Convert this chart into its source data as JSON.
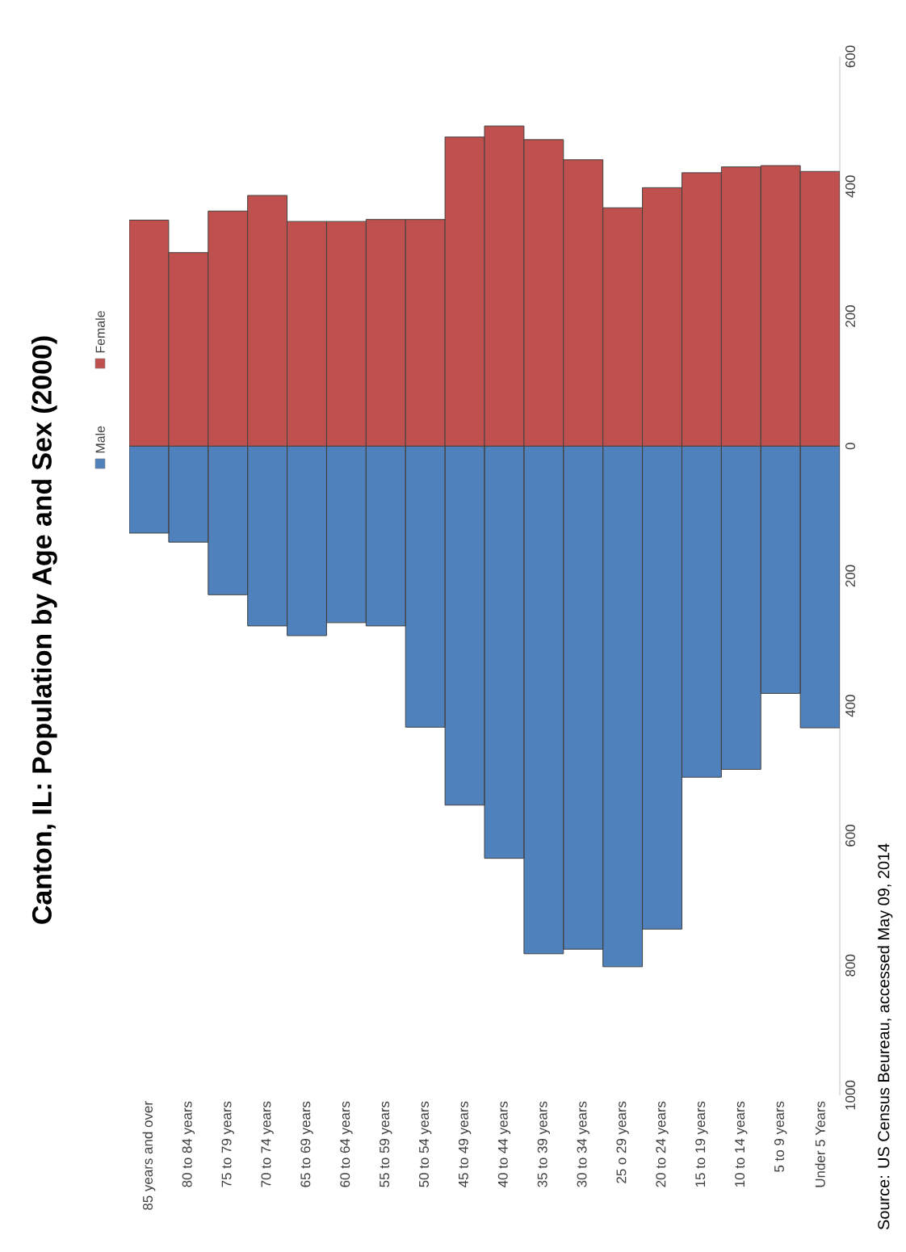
{
  "chart_data": {
    "type": "bar",
    "title": "Canton, IL: Population by Age and Sex (2000)",
    "categories": [
      "85 years and over",
      "80 to 84 years",
      "75 to 79 years",
      "70 to 74 years",
      "65 to 69 years",
      "60 to 64 years",
      "55 to 59 years",
      "50 to 54 years",
      "45 to 49 years",
      "40 to 44 years",
      "35 to 39 years",
      "30 to 34 years",
      "25 o 29 years",
      "20 to 24 years",
      "15 to 19 years",
      "10 to 14 years",
      "5 to 9 years",
      "Under 5 Years"
    ],
    "series": [
      {
        "name": "Male",
        "color": "#4f81bd",
        "values": [
          -134,
          -148,
          -229,
          -277,
          -292,
          -272,
          -277,
          -433,
          -553,
          -635,
          -782,
          -775,
          -802,
          -744,
          -510,
          -498,
          -381,
          -434
        ]
      },
      {
        "name": "Female",
        "color": "#c0504d",
        "values": [
          348,
          298,
          362,
          386,
          346,
          346,
          349,
          349,
          476,
          493,
          472,
          441,
          367,
          398,
          421,
          430,
          432,
          423
        ]
      }
    ],
    "ylim": [
      -1000,
      600
    ],
    "yticks": [
      {
        "value": -1000,
        "label": "1000"
      },
      {
        "value": -800,
        "label": "800"
      },
      {
        "value": -600,
        "label": "600"
      },
      {
        "value": -400,
        "label": "400"
      },
      {
        "value": -200,
        "label": "200"
      },
      {
        "value": 0,
        "label": "0"
      },
      {
        "value": 200,
        "label": "200"
      },
      {
        "value": 400,
        "label": "400"
      },
      {
        "value": 600,
        "label": "600"
      }
    ],
    "stacked": true,
    "legend": "left",
    "annotations": [
      "Source: US Census Beureau, accessed May 09, 2014"
    ]
  }
}
